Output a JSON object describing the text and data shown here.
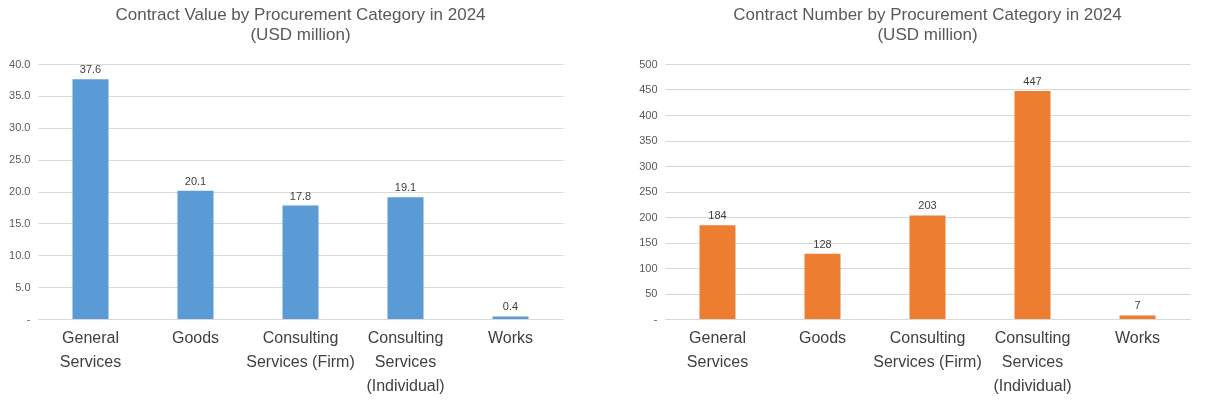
{
  "chart_data": [
    {
      "type": "bar",
      "title": "Contract Value by Procurement Category in 2024",
      "subtitle": "(USD million)",
      "categories": [
        "General Services",
        "Goods",
        "Consulting Services (Firm)",
        "Consulting Services (Individual)",
        "Works"
      ],
      "values": [
        37.6,
        20.1,
        17.8,
        19.1,
        0.4
      ],
      "color": "#5b9bd5",
      "ylim": [
        0,
        40
      ],
      "yticks": [
        {
          "value": 0,
          "label": "-"
        },
        {
          "value": 5,
          "label": "5.0"
        },
        {
          "value": 10,
          "label": "10.0"
        },
        {
          "value": 15,
          "label": "15.0"
        },
        {
          "value": 20,
          "label": "20.0"
        },
        {
          "value": 25,
          "label": "25.0"
        },
        {
          "value": 30,
          "label": "30.0"
        },
        {
          "value": 35,
          "label": "35.0"
        },
        {
          "value": 40,
          "label": "40.0"
        }
      ],
      "grid": "y",
      "data_labels": true
    },
    {
      "type": "bar",
      "title": "Contract Number by Procurement Category in 2024",
      "subtitle": "(USD million)",
      "categories": [
        "General Services",
        "Goods",
        "Consulting Services (Firm)",
        "Consulting Services (Individual)",
        "Works"
      ],
      "values": [
        184,
        128,
        203,
        447,
        7
      ],
      "color": "#ed7d31",
      "ylim": [
        0,
        500
      ],
      "yticks": [
        {
          "value": 0,
          "label": "-"
        },
        50,
        100,
        150,
        200,
        250,
        300,
        350,
        400,
        450,
        500
      ],
      "grid": "y",
      "data_labels": true
    }
  ]
}
